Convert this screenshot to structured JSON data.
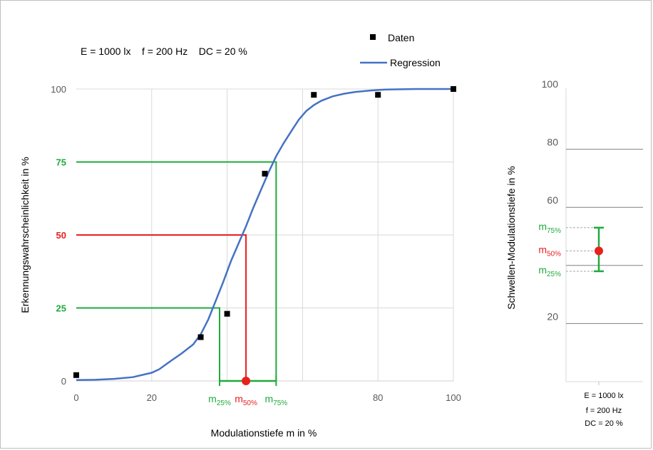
{
  "chart_data": [
    {
      "type": "scatter",
      "title": "",
      "info_text": "E = 1000 lx    f = 200 Hz    DC = 20 %",
      "xlabel": "Modulationstiefe m in %",
      "ylabel": "Erkennungswahrscheinlichkeit in %",
      "xlim": [
        0,
        100
      ],
      "ylim": [
        0,
        100
      ],
      "x_ticks": [
        "0",
        "20",
        "80",
        "100"
      ],
      "x_tick_values": [
        0,
        20,
        80,
        100
      ],
      "y_ticks": [
        "0",
        "100"
      ],
      "y_tick_values": [
        0,
        100
      ],
      "y_highlight_ticks": [
        {
          "label": "25",
          "value": 25,
          "color": "#1faa3c"
        },
        {
          "label": "50",
          "value": 50,
          "color": "#e8201e"
        },
        {
          "label": "75",
          "value": 75,
          "color": "#1faa3c"
        }
      ],
      "grid": true,
      "legend": {
        "position": "top-right",
        "entries": [
          {
            "label": "Daten",
            "marker": "square",
            "color": "#000000"
          },
          {
            "label": "Regression",
            "marker": "line",
            "color": "#4472c4"
          }
        ]
      },
      "series": [
        {
          "name": "Daten",
          "kind": "points",
          "color": "#000000",
          "x": [
            0,
            33,
            40,
            50,
            63,
            80,
            100
          ],
          "y": [
            2,
            15,
            23,
            71,
            98,
            98,
            100
          ]
        },
        {
          "name": "Regression",
          "kind": "line",
          "color": "#4472c4",
          "x": [
            0,
            5,
            10,
            15,
            20,
            22,
            25,
            28,
            31,
            33,
            35,
            37,
            39,
            41,
            43,
            45,
            47,
            49,
            51,
            53,
            55,
            57,
            59,
            61,
            63,
            65,
            68,
            71,
            74,
            78,
            82,
            86,
            90,
            95,
            100
          ],
          "y": [
            0.3,
            0.4,
            0.7,
            1.3,
            2.8,
            4,
            6.8,
            9.5,
            12.5,
            16,
            21,
            27.5,
            34,
            41,
            47,
            53,
            59.5,
            65.5,
            71.5,
            77,
            81.5,
            85.5,
            89.5,
            92.5,
            94.5,
            96,
            97.5,
            98.4,
            99,
            99.5,
            99.8,
            99.9,
            100,
            100,
            100
          ]
        }
      ],
      "thresholds": [
        {
          "label_base": "m",
          "label_sub": "25%",
          "x": 38,
          "y": 25,
          "color": "#1faa3c"
        },
        {
          "label_base": "m",
          "label_sub": "50%",
          "x": 45,
          "y": 50,
          "color": "#e8201e"
        },
        {
          "label_base": "m",
          "label_sub": "75%",
          "x": 53,
          "y": 75,
          "color": "#1faa3c"
        }
      ],
      "bracket": {
        "x_from": 38,
        "x_to": 53,
        "marker_x": 45,
        "color": "#1faa3c",
        "marker_color": "#e8201e"
      }
    },
    {
      "type": "errorbar",
      "ylabel": "Schwellen-Modulationstiefe in %",
      "ylim": [
        0,
        100
      ],
      "y_ticks": [
        "20",
        "60",
        "80",
        "100"
      ],
      "y_tick_values": [
        20,
        60,
        80,
        100
      ],
      "grid": true,
      "category_lines": [
        "E = 1000 lx",
        "f = 200 Hz",
        "DC = 20 %"
      ],
      "point": {
        "y": 45,
        "y_low": 38,
        "y_high": 53,
        "label_mid_base": "m",
        "label_mid_sub": "50%",
        "label_low_base": "m",
        "label_low_sub": "25%",
        "label_high_base": "m",
        "label_high_sub": "75%",
        "color_point": "#e8201e",
        "color_bar": "#1faa3c"
      }
    }
  ]
}
